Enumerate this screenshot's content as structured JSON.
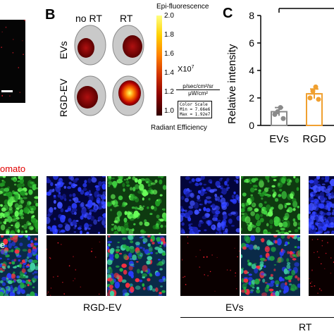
{
  "panel_b": {
    "letter": "B",
    "col_no_rt": "no RT",
    "col_rt": "RT",
    "row_evs": "EVs",
    "row_rgd": "RGD-EV",
    "colorbar": {
      "title": "Epi-fluorescence",
      "ticks": [
        "2.0",
        "1.8",
        "1.6",
        "1.4",
        "1.2",
        "1.0"
      ],
      "multiplier": "X10",
      "exponent": "7",
      "unit_num": "p/sec/cm²/sr",
      "unit_den": "μW/cm²",
      "scale_title": "Color Scale",
      "scale_min": "Min = 7.66e6",
      "scale_max": "Max = 1.92e7",
      "footer": "Radiant Efficiency"
    }
  },
  "panel_c": {
    "letter": "C",
    "chart_data": {
      "type": "bar",
      "categories": [
        "EVs",
        "RGD"
      ],
      "values": [
        1.0,
        2.3
      ],
      "errors": [
        0.3,
        0.35
      ],
      "points": [
        [
          0.8,
          1.0,
          1.3,
          0.5
        ],
        [
          2.0,
          2.5,
          2.8,
          1.9
        ]
      ],
      "ylabel": "Relative intensity",
      "ylim": [
        0,
        8
      ],
      "yticks": [
        "0",
        "2",
        "4",
        "6",
        "8"
      ],
      "colors": [
        "#8a8a8a",
        "#f0a030"
      ]
    }
  },
  "bottom": {
    "tdtomato_fragment": "omato",
    "side_fragment": "e",
    "label_rgd": "RGD-EV",
    "label_evs": "EVs",
    "label_rt": "RT"
  }
}
